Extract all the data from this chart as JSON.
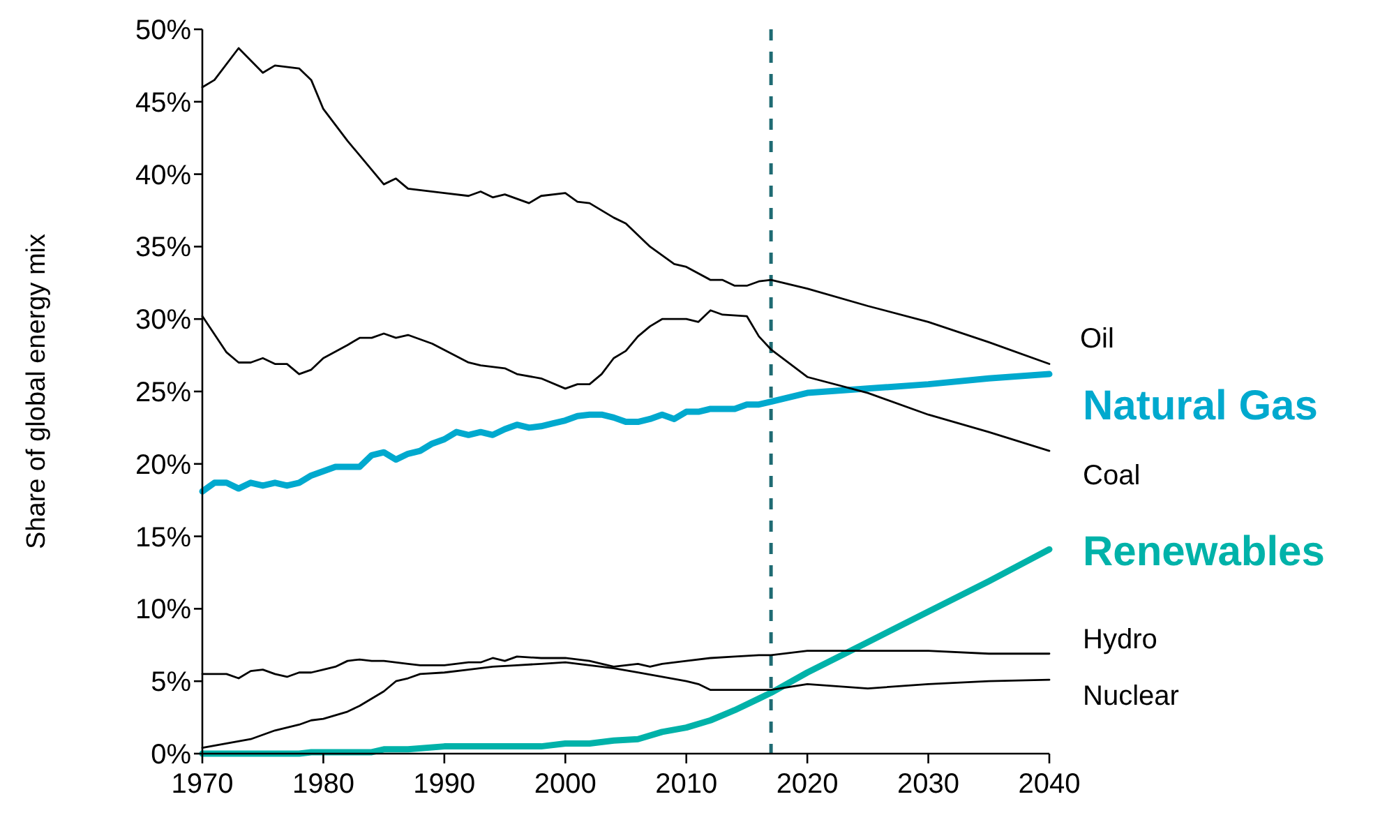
{
  "chart_data": {
    "type": "line",
    "ylabel": "Share of global energy mix",
    "xlim": [
      1970,
      2040
    ],
    "xticks": [
      1970,
      1980,
      1990,
      2000,
      2010,
      2020,
      2030,
      2040
    ],
    "ylim": [
      0,
      50
    ],
    "yticks": [
      {
        "value": 0,
        "label": "0%"
      },
      {
        "value": 5,
        "label": "5%"
      },
      {
        "value": 10,
        "label": "10%"
      },
      {
        "value": 15,
        "label": "15%"
      },
      {
        "value": 20,
        "label": "20%"
      },
      {
        "value": 25,
        "label": "25%"
      },
      {
        "value": 30,
        "label": "30%"
      },
      {
        "value": 35,
        "label": "35%"
      },
      {
        "value": 40,
        "label": "40%"
      },
      {
        "value": 45,
        "label": "45%"
      },
      {
        "value": 50,
        "label": "50%"
      }
    ],
    "grid": false,
    "marker": "none",
    "line_style": "solid",
    "ref_lines": [
      {
        "axis": "x",
        "value": 2017,
        "color": "#1f6b73",
        "line_style": "dashed"
      }
    ],
    "series": [
      {
        "name": "Oil",
        "color": "#000000",
        "x": [
          1970,
          1971,
          1973,
          1975,
          1976,
          1978,
          1979,
          1980,
          1982,
          1985,
          1986,
          1987,
          1990,
          1992,
          1993,
          1994,
          1995,
          1997,
          1998,
          2000,
          2001,
          2002,
          2004,
          2005,
          2007,
          2009,
          2010,
          2012,
          2013,
          2014,
          2015,
          2016,
          2017,
          2020,
          2025,
          2030,
          2035,
          2040
        ],
        "values": [
          46,
          46.5,
          48.7,
          47,
          47.5,
          47.3,
          46.5,
          44.5,
          42.3,
          39.3,
          39.7,
          39,
          38.7,
          38.5,
          38.8,
          38.4,
          38.6,
          38,
          38.5,
          38.7,
          38.1,
          38,
          37,
          36.6,
          35,
          33.8,
          33.6,
          32.7,
          32.7,
          32.3,
          32.3,
          32.6,
          32.7,
          32.1,
          30.9,
          29.8,
          28.4,
          26.9
        ]
      },
      {
        "name": "Natural Gas",
        "color": "#00a9ce",
        "x": [
          1970,
          1971,
          1972,
          1973,
          1974,
          1975,
          1976,
          1977,
          1978,
          1979,
          1980,
          1981,
          1983,
          1984,
          1985,
          1986,
          1987,
          1988,
          1989,
          1990,
          1991,
          1992,
          1993,
          1994,
          1995,
          1996,
          1997,
          1998,
          1999,
          2000,
          2001,
          2002,
          2003,
          2004,
          2005,
          2006,
          2007,
          2008,
          2009,
          2010,
          2011,
          2012,
          2013,
          2014,
          2015,
          2016,
          2017,
          2020,
          2025,
          2030,
          2035,
          2040
        ],
        "values": [
          18.1,
          18.7,
          18.7,
          18.3,
          18.7,
          18.5,
          18.7,
          18.5,
          18.7,
          19.2,
          19.5,
          19.8,
          19.8,
          20.6,
          20.8,
          20.3,
          20.7,
          20.9,
          21.4,
          21.7,
          22.2,
          22,
          22.2,
          22,
          22.4,
          22.7,
          22.5,
          22.6,
          22.8,
          23,
          23.3,
          23.4,
          23.4,
          23.2,
          22.9,
          22.9,
          23.1,
          23.4,
          23.1,
          23.6,
          23.6,
          23.8,
          23.8,
          23.8,
          24.1,
          24.1,
          24.3,
          24.9,
          25.2,
          25.5,
          25.9,
          26.2
        ]
      },
      {
        "name": "Coal",
        "color": "#000000",
        "x": [
          1970,
          1972,
          1973,
          1974,
          1975,
          1976,
          1977,
          1978,
          1979,
          1980,
          1982,
          1983,
          1984,
          1985,
          1986,
          1987,
          1989,
          1992,
          1993,
          1995,
          1996,
          1998,
          2000,
          2001,
          2002,
          2003,
          2004,
          2005,
          2006,
          2007,
          2008,
          2010,
          2011,
          2012,
          2013,
          2015,
          2016,
          2017,
          2020,
          2025,
          2030,
          2035,
          2040
        ],
        "values": [
          30.2,
          27.7,
          27,
          27,
          27.3,
          26.9,
          26.9,
          26.2,
          26.5,
          27.3,
          28.2,
          28.7,
          28.7,
          29,
          28.7,
          28.9,
          28.3,
          27,
          26.8,
          26.6,
          26.2,
          25.9,
          25.2,
          25.5,
          25.5,
          26.2,
          27.3,
          27.8,
          28.8,
          29.5,
          30,
          30,
          29.8,
          30.6,
          30.3,
          30.2,
          28.8,
          27.9,
          26,
          24.9,
          23.4,
          22.2,
          20.9
        ]
      },
      {
        "name": "Renewables",
        "color": "#00b2a9",
        "x": [
          1970,
          1978,
          1979,
          1984,
          1985,
          1987,
          1990,
          1998,
          2000,
          2002,
          2004,
          2006,
          2008,
          2010,
          2012,
          2014,
          2016,
          2017,
          2020,
          2025,
          2030,
          2035,
          2040
        ],
        "values": [
          0,
          0,
          0.1,
          0.1,
          0.3,
          0.3,
          0.5,
          0.5,
          0.7,
          0.7,
          0.9,
          1,
          1.5,
          1.8,
          2.3,
          3,
          3.8,
          4.2,
          5.6,
          7.7,
          9.8,
          11.9,
          14.1
        ]
      },
      {
        "name": "Hydro",
        "color": "#000000",
        "x": [
          1970,
          1972,
          1973,
          1974,
          1975,
          1976,
          1977,
          1978,
          1979,
          1980,
          1981,
          1982,
          1983,
          1984,
          1985,
          1987,
          1988,
          1990,
          1992,
          1993,
          1994,
          1995,
          1996,
          1998,
          2000,
          2002,
          2004,
          2006,
          2007,
          2008,
          2010,
          2012,
          2014,
          2016,
          2017,
          2020,
          2025,
          2030,
          2035,
          2040
        ],
        "values": [
          5.5,
          5.5,
          5.2,
          5.7,
          5.8,
          5.5,
          5.3,
          5.6,
          5.6,
          5.8,
          6,
          6.4,
          6.5,
          6.4,
          6.4,
          6.2,
          6.1,
          6.1,
          6.3,
          6.3,
          6.6,
          6.4,
          6.7,
          6.6,
          6.6,
          6.4,
          6,
          6.2,
          6,
          6.2,
          6.4,
          6.6,
          6.7,
          6.8,
          6.8,
          7.1,
          7.1,
          7.1,
          6.9,
          6.9
        ]
      },
      {
        "name": "Nuclear",
        "color": "#000000",
        "x": [
          1970,
          1972,
          1974,
          1976,
          1978,
          1979,
          1980,
          1982,
          1983,
          1985,
          1986,
          1987,
          1988,
          1990,
          1992,
          1994,
          1996,
          1998,
          2000,
          2002,
          2004,
          2006,
          2008,
          2010,
          2011,
          2012,
          2015,
          2017,
          2020,
          2025,
          2030,
          2035,
          2040
        ],
        "values": [
          0.4,
          0.7,
          1,
          1.6,
          2,
          2.3,
          2.4,
          2.9,
          3.3,
          4.3,
          5,
          5.2,
          5.5,
          5.6,
          5.8,
          6,
          6.1,
          6.2,
          6.3,
          6.1,
          5.9,
          5.6,
          5.3,
          5,
          4.8,
          4.4,
          4.4,
          4.4,
          4.8,
          4.5,
          4.8,
          5,
          5.1
        ]
      }
    ]
  }
}
